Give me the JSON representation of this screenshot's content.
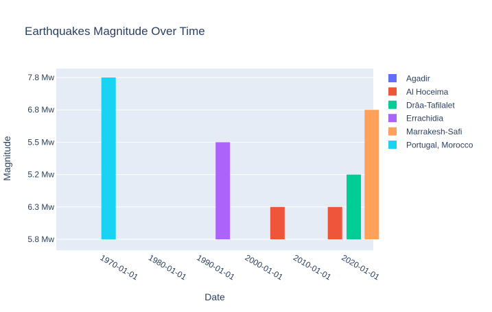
{
  "chart_data": {
    "type": "bar",
    "title": "Earthquakes Magnitude Over Time",
    "xlabel": "Date",
    "ylabel": "Magnitude",
    "y_axis_type": "category",
    "y_categories": [
      "5.8 Mw",
      "6.3 Mw",
      "5.2 Mw",
      "5.5 Mw",
      "6.8 Mw",
      "7.8 Mw"
    ],
    "x_axis_type": "date",
    "x_ticks": [
      "1970-01-01",
      "1980-01-01",
      "1990-01-01",
      "2000-01-01",
      "2010-01-01",
      "2020-01-01"
    ],
    "x_range": [
      "1958-05-01",
      "2023-12-31"
    ],
    "series": [
      {
        "name": "Agadir",
        "color": "#636efa",
        "points": []
      },
      {
        "name": "Al Hoceima",
        "color": "#ef553b",
        "points": [
          {
            "x": "2004-02-24",
            "y": "6.3 Mw"
          },
          {
            "x": "2016-01-25",
            "y": "6.3 Mw"
          }
        ]
      },
      {
        "name": "Drâa-Tafilalet",
        "color": "#00cc96",
        "points": [
          {
            "x": "2019-12-15",
            "y": "5.2 Mw"
          }
        ]
      },
      {
        "name": "Errachidia",
        "color": "#ab63fa",
        "points": [
          {
            "x": "1992-10-30",
            "y": "5.5 Mw"
          }
        ]
      },
      {
        "name": "Marrakesh-Safi",
        "color": "#ffa15a",
        "points": [
          {
            "x": "2023-09-08",
            "y": "6.8 Mw"
          }
        ]
      },
      {
        "name": "Portugal, Morocco",
        "color": "#19d3f3",
        "points": [
          {
            "x": "1969-02-28",
            "y": "7.8 Mw"
          }
        ]
      }
    ],
    "legend_position": "right",
    "grid": true
  },
  "colors": {
    "plot_bg": "#e5ecf6",
    "grid": "#ffffff",
    "text": "#2a3f5f"
  }
}
